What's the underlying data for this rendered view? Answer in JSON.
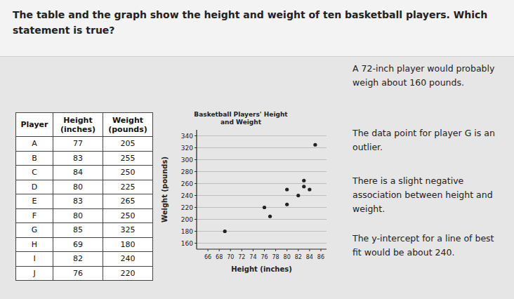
{
  "question": "The table and the graph show the height and weight of ten basketball players. Which statement is true?",
  "table": {
    "header": [
      "Player",
      "Height (inches)",
      "Weight (pounds)"
    ],
    "rows": [
      [
        "A",
        77,
        205
      ],
      [
        "B",
        83,
        255
      ],
      [
        "C",
        84,
        250
      ],
      [
        "D",
        80,
        225
      ],
      [
        "E",
        83,
        265
      ],
      [
        "F",
        80,
        250
      ],
      [
        "G",
        85,
        325
      ],
      [
        "H",
        69,
        180
      ],
      [
        "I",
        82,
        240
      ],
      [
        "J",
        76,
        220
      ]
    ]
  },
  "chart_data": {
    "type": "scatter",
    "title": "Basketball Players' Height and Weight",
    "x_label": "Height (inches)",
    "y_label": "Weight (pounds)",
    "x": [
      77,
      83,
      84,
      80,
      83,
      80,
      85,
      69,
      82,
      76
    ],
    "values": [
      205,
      255,
      250,
      225,
      265,
      250,
      325,
      180,
      240,
      220
    ],
    "xlim": [
      64,
      87
    ],
    "ylim": [
      150,
      350
    ],
    "xticks": [
      66,
      68,
      70,
      72,
      74,
      76,
      78,
      80,
      82,
      84,
      86
    ],
    "yticks": [
      160,
      180,
      200,
      220,
      240,
      260,
      280,
      300,
      320,
      340
    ],
    "grid": true,
    "marker": "circle",
    "color": "#222222"
  },
  "choices": [
    "A 72-inch player would probably weigh about 160 pounds.",
    "The data point for player G is an outlier.",
    "There is a slight negative association between height and weight.",
    "The y-intercept for a line of best fit would be about 240."
  ]
}
